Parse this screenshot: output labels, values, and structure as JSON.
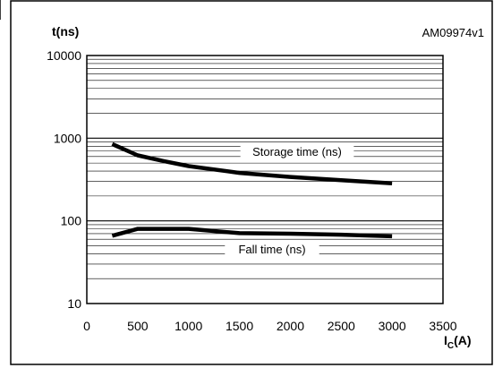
{
  "figure_code": "AM09974v1",
  "chart_data": {
    "type": "line",
    "title": "",
    "ylabel": "t(ns)",
    "xlabel": {
      "main": "I",
      "sub": "C",
      "unit": "(A)"
    },
    "yscale": "log",
    "ylim": [
      10,
      10000
    ],
    "xlim": [
      0,
      3500
    ],
    "x_ticks": [
      "0",
      "500",
      "1000",
      "1500",
      "2000",
      "2500",
      "3000",
      "3500"
    ],
    "y_ticks": [
      "10",
      "100",
      "1000",
      "10000"
    ],
    "grid": "horizontal log minor gridlines",
    "series": [
      {
        "label": "Storage time (ns)",
        "x": [
          250,
          500,
          750,
          1000,
          1500,
          2000,
          2500,
          3000
        ],
        "y": [
          850,
          620,
          530,
          460,
          380,
          340,
          310,
          285
        ]
      },
      {
        "label": "Fall time (ns)",
        "x": [
          250,
          500,
          750,
          1000,
          1500,
          2000,
          2500,
          3000
        ],
        "y": [
          66,
          80,
          80,
          80,
          71,
          70,
          68,
          65
        ]
      }
    ]
  }
}
